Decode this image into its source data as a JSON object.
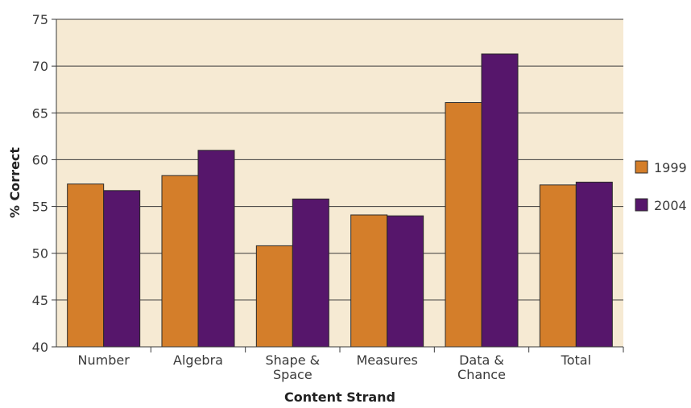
{
  "chart_data": {
    "type": "bar",
    "title": "",
    "xlabel": "Content Strand",
    "ylabel": "% Correct",
    "ylim": [
      40,
      75
    ],
    "yticks": [
      40,
      45,
      50,
      55,
      60,
      65,
      70,
      75
    ],
    "grid": true,
    "legend_position": "right",
    "categories": [
      [
        "Number"
      ],
      [
        "Algebra"
      ],
      [
        "Shape &",
        "Space"
      ],
      [
        "Measures"
      ],
      [
        "Data &",
        "Chance"
      ],
      [
        "Total"
      ]
    ],
    "series": [
      {
        "name": "1999",
        "color": "#D47E2A",
        "values": [
          57.4,
          58.3,
          50.8,
          54.1,
          66.1,
          57.3
        ]
      },
      {
        "name": "2004",
        "color": "#56166B",
        "values": [
          56.7,
          61.0,
          55.8,
          54.0,
          71.3,
          57.6
        ]
      }
    ],
    "plot_background": "#F6EAD3"
  }
}
